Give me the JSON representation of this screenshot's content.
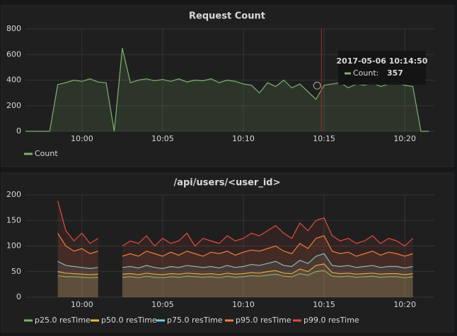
{
  "chart_data": [
    {
      "type": "line",
      "title": "Request Count",
      "x": [
        "09:56:30",
        "09:57:00",
        "09:57:30",
        "09:58:00",
        "09:58:30",
        "09:59:00",
        "09:59:30",
        "10:00:00",
        "10:00:30",
        "10:01:00",
        "10:01:30",
        "10:02:00",
        "10:02:30",
        "10:03:00",
        "10:03:30",
        "10:04:00",
        "10:04:30",
        "10:05:00",
        "10:05:30",
        "10:06:00",
        "10:06:30",
        "10:07:00",
        "10:07:30",
        "10:08:00",
        "10:08:30",
        "10:09:00",
        "10:09:30",
        "10:10:00",
        "10:10:30",
        "10:11:00",
        "10:11:30",
        "10:12:00",
        "10:12:30",
        "10:13:00",
        "10:13:30",
        "10:14:00",
        "10:14:30",
        "10:15:00",
        "10:15:30",
        "10:16:00",
        "10:16:30",
        "10:17:00",
        "10:17:30",
        "10:18:00",
        "10:18:30",
        "10:19:00",
        "10:19:30",
        "10:20:00",
        "10:20:30",
        "10:21:00",
        "10:21:30"
      ],
      "series": [
        {
          "name": "Count",
          "color": "#7eb26d",
          "values": [
            0,
            0,
            0,
            0,
            365,
            380,
            400,
            390,
            410,
            385,
            380,
            0,
            650,
            380,
            400,
            410,
            395,
            405,
            390,
            410,
            385,
            400,
            395,
            410,
            380,
            400,
            390,
            370,
            360,
            300,
            380,
            350,
            400,
            340,
            370,
            310,
            250,
            360,
            370,
            380,
            340,
            370,
            360,
            380,
            350,
            370,
            380,
            360,
            350,
            0,
            0
          ]
        }
      ],
      "xlim": [
        "09:56:30",
        "10:21:50"
      ],
      "xticks": [
        {
          "value": "10:00:00",
          "label": "10:00"
        },
        {
          "value": "10:05:00",
          "label": "10:05"
        },
        {
          "value": "10:10:00",
          "label": "10:10"
        },
        {
          "value": "10:15:00",
          "label": "10:15"
        },
        {
          "value": "10:20:00",
          "label": "10:20"
        }
      ],
      "ylim": [
        0,
        800
      ],
      "yticks": [
        0,
        200,
        400,
        600,
        800
      ],
      "grid": true,
      "tooltip": {
        "time": "2017-05-06 10:14:50",
        "label": "Count:",
        "value": 357
      }
    },
    {
      "type": "line",
      "title": "/api/users/<user_id>",
      "x": [
        "09:56:30",
        "09:57:00",
        "09:57:30",
        "09:58:00",
        "09:58:30",
        "09:59:00",
        "09:59:30",
        "10:00:00",
        "10:00:30",
        "10:01:00",
        "10:01:30",
        "10:02:00",
        "10:02:30",
        "10:03:00",
        "10:03:30",
        "10:04:00",
        "10:04:30",
        "10:05:00",
        "10:05:30",
        "10:06:00",
        "10:06:30",
        "10:07:00",
        "10:07:30",
        "10:08:00",
        "10:08:30",
        "10:09:00",
        "10:09:30",
        "10:10:00",
        "10:10:30",
        "10:11:00",
        "10:11:30",
        "10:12:00",
        "10:12:30",
        "10:13:00",
        "10:13:30",
        "10:14:00",
        "10:14:30",
        "10:15:00",
        "10:15:30",
        "10:16:00",
        "10:16:30",
        "10:17:00",
        "10:17:30",
        "10:18:00",
        "10:18:30",
        "10:19:00",
        "10:19:30",
        "10:20:00",
        "10:20:30",
        "10:21:00",
        "10:21:30"
      ],
      "series": [
        {
          "name": "p25.0 resTime",
          "color": "#7eb26d",
          "values": [
            null,
            null,
            null,
            null,
            42,
            40,
            40,
            39,
            38,
            39,
            null,
            null,
            39,
            40,
            38,
            41,
            39,
            38,
            40,
            39,
            41,
            40,
            39,
            40,
            38,
            41,
            39,
            40,
            42,
            41,
            43,
            45,
            41,
            40,
            46,
            43,
            50,
            52,
            41,
            40,
            41,
            39,
            40,
            41,
            39,
            40,
            40,
            38,
            40,
            null,
            null
          ]
        },
        {
          "name": "p50.0 resTime",
          "color": "#eab839",
          "values": [
            null,
            null,
            null,
            null,
            50,
            47,
            46,
            45,
            44,
            45,
            null,
            null,
            45,
            46,
            44,
            47,
            45,
            44,
            46,
            45,
            47,
            46,
            45,
            46,
            44,
            47,
            45,
            46,
            48,
            47,
            50,
            52,
            47,
            46,
            55,
            50,
            62,
            65,
            48,
            46,
            47,
            45,
            46,
            47,
            45,
            46,
            46,
            44,
            46,
            null,
            null
          ]
        },
        {
          "name": "p75.0 resTime",
          "color": "#6ed0e0",
          "values": [
            null,
            null,
            null,
            null,
            70,
            62,
            60,
            58,
            56,
            58,
            null,
            null,
            58,
            60,
            57,
            62,
            58,
            56,
            60,
            58,
            62,
            60,
            58,
            60,
            57,
            62,
            58,
            60,
            64,
            62,
            66,
            70,
            62,
            60,
            72,
            66,
            80,
            85,
            62,
            60,
            62,
            58,
            60,
            62,
            58,
            60,
            60,
            57,
            60,
            null,
            null
          ]
        },
        {
          "name": "p95.0 resTime",
          "color": "#ef843c",
          "values": [
            null,
            null,
            null,
            null,
            125,
            100,
            90,
            95,
            85,
            90,
            null,
            null,
            80,
            85,
            80,
            90,
            85,
            80,
            88,
            82,
            90,
            85,
            80,
            88,
            85,
            90,
            82,
            88,
            92,
            90,
            95,
            100,
            90,
            85,
            105,
            95,
            115,
            120,
            90,
            85,
            88,
            80,
            85,
            90,
            82,
            88,
            85,
            80,
            85,
            null,
            null
          ]
        },
        {
          "name": "p99.0 resTime",
          "color": "#e24d42",
          "values": [
            null,
            null,
            null,
            null,
            188,
            130,
            110,
            125,
            105,
            115,
            null,
            null,
            100,
            110,
            105,
            120,
            100,
            115,
            105,
            110,
            125,
            100,
            115,
            110,
            105,
            120,
            110,
            115,
            125,
            120,
            130,
            140,
            125,
            115,
            145,
            130,
            150,
            155,
            120,
            110,
            115,
            105,
            110,
            120,
            105,
            115,
            110,
            100,
            115,
            null,
            null
          ]
        }
      ],
      "xlim": [
        "09:56:30",
        "10:21:50"
      ],
      "xticks": [
        {
          "value": "10:00:00",
          "label": "10:00"
        },
        {
          "value": "10:05:00",
          "label": "10:05"
        },
        {
          "value": "10:10:00",
          "label": "10:10"
        },
        {
          "value": "10:15:00",
          "label": "10:15"
        },
        {
          "value": "10:20:00",
          "label": "10:20"
        }
      ],
      "ylim": [
        0,
        200
      ],
      "yticks": [
        0,
        50,
        100,
        150,
        200
      ],
      "grid": true
    }
  ]
}
